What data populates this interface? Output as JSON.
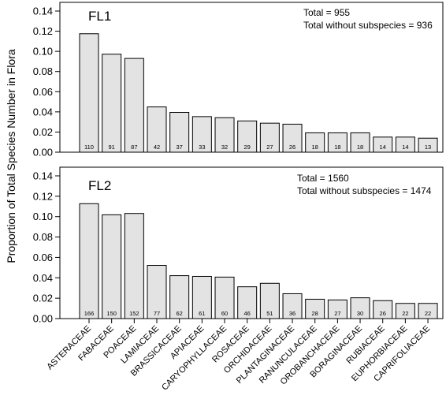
{
  "figure": {
    "ylabel": "Proportion of Total Species Number in Flora",
    "categories": [
      "ASTERACEAE",
      "FABACEAE",
      "POACEAE",
      "LAMIACEAE",
      "BRASSICACEAE",
      "APIACEAE",
      "CARYOPHYLLACEAE",
      "ROSACEAE",
      "ORCHIDACEAE",
      "PLANTAGINACEAE",
      "RANUNCULACEAE",
      "OROBANCHACEAE",
      "BORAGINACEAE",
      "RUBIACEAE",
      "EUPHORBIACEAE",
      "CAPRIFOLIACEAE"
    ]
  },
  "colors": {
    "bar_fill": "#e3e3e3",
    "bar_stroke": "#000000"
  },
  "chart_data": [
    {
      "type": "bar",
      "label": "FL1",
      "total_text": "Total = 955",
      "total_wo_sub_text": "Total without subspecies = 936",
      "ylim": [
        0,
        0.14
      ],
      "yticks": [
        "0.00",
        "0.02",
        "0.04",
        "0.06",
        "0.08",
        "0.10",
        "0.12",
        "0.14"
      ],
      "categories": [
        "ASTERACEAE",
        "FABACEAE",
        "POACEAE",
        "LAMIACEAE",
        "BRASSICACEAE",
        "APIACEAE",
        "CARYOPHYLLACEAE",
        "ROSACEAE",
        "ORCHIDACEAE",
        "PLANTAGINACEAE",
        "RANUNCULACEAE",
        "OROBANCHACEAE",
        "BORAGINACEAE",
        "RUBIACEAE",
        "EUPHORBIACEAE",
        "CAPRIFOLIACEAE"
      ],
      "values": [
        0.1175,
        0.0972,
        0.093,
        0.0449,
        0.0395,
        0.0353,
        0.0342,
        0.031,
        0.0288,
        0.0278,
        0.0192,
        0.0192,
        0.0192,
        0.015,
        0.015,
        0.0139
      ],
      "counts": [
        "110",
        "91",
        "87",
        "42",
        "37",
        "33",
        "32",
        "29",
        "27",
        "26",
        "18",
        "18",
        "18",
        "14",
        "14",
        "13"
      ]
    },
    {
      "type": "bar",
      "label": "FL2",
      "total_text": "Total = 1560",
      "total_wo_sub_text": "Total without subspecies = 1474",
      "ylim": [
        0,
        0.14
      ],
      "yticks": [
        "0.00",
        "0.02",
        "0.04",
        "0.06",
        "0.08",
        "0.10",
        "0.12",
        "0.14"
      ],
      "categories": [
        "ASTERACEAE",
        "FABACEAE",
        "POACEAE",
        "LAMIACEAE",
        "BRASSICACEAE",
        "APIACEAE",
        "CARYOPHYLLACEAE",
        "ROSACEAE",
        "ORCHIDACEAE",
        "PLANTAGINACEAE",
        "RANUNCULACEAE",
        "OROBANCHACEAE",
        "BORAGINACEAE",
        "RUBIACEAE",
        "EUPHORBIACEAE",
        "CAPRIFOLIACEAE"
      ],
      "values": [
        0.1127,
        0.1018,
        0.1031,
        0.0522,
        0.0421,
        0.0414,
        0.0407,
        0.0312,
        0.0346,
        0.0244,
        0.019,
        0.0183,
        0.0204,
        0.0176,
        0.0149,
        0.0149
      ],
      "counts": [
        "166",
        "150",
        "152",
        "77",
        "62",
        "61",
        "60",
        "46",
        "51",
        "36",
        "28",
        "27",
        "30",
        "26",
        "22",
        "22"
      ]
    }
  ]
}
